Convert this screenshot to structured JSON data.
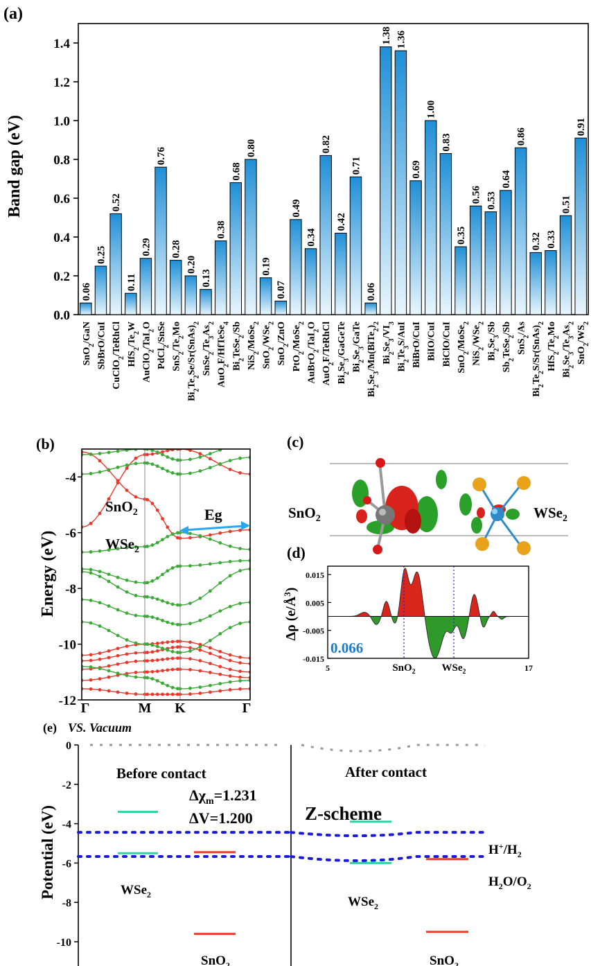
{
  "colors": {
    "bar_top": "#1f8fd6",
    "bar_bottom": "#e9f6fd",
    "red_band": "#e8382b",
    "green_band": "#3aa935",
    "blue_arrow": "#2aa6ee",
    "teal_level": "#2ed3a4",
    "red_level": "#f03a2a",
    "dotted_blue": "#1a1ad8",
    "value_blue": "#1f7cc4"
  },
  "panel_a": {
    "label": "(a)",
    "chart_data": {
      "type": "bar",
      "ylabel": "Band gap (eV)",
      "ylim": [
        0,
        1.5
      ],
      "yticks": [
        "0.0",
        "0.2",
        "0.4",
        "0.6",
        "0.8",
        "1.0",
        "1.2",
        "1.4"
      ],
      "categories": [
        "SnO2/GaN",
        "SbBrO/CuI",
        "CuClO2/TeRhCl",
        "HfS2/Te2W",
        "AuClO2/TaI2O",
        "PdCl2/SnSe",
        "SnS2/Te2Mo",
        "Bi2Te2Se/Sr(SnAs)2",
        "SnSe2/Te3As2",
        "AuO2F/HfTeSe4",
        "Bi2TeSe2/Sb",
        "NiS2/MoSe2",
        "SnO2/WSe2",
        "SnO2/ZnO",
        "PtO2/MoSe2",
        "AuBrO2/TaI2O",
        "AuO2F/TeRhCl",
        "Bi2Se3/GaGeTe",
        "Bi2Se3/GaTe",
        "Bi2Se3/Mn(BiTe2)2",
        "Bi2Se3/VI3",
        "Bi2Te3S/AuI",
        "BiBrO/CuI",
        "BiIO/CuI",
        "BiClO/CuI",
        "SnO2/MoSe2",
        "NiS2/WSe2",
        "Bi2Se3/Sb",
        "Sb2TeSe2/Sb",
        "SnS2/As",
        "Bi2Te2S/Sr(SnAs)2",
        "HfS2/Te2Mo",
        "Bi2Se3/Te3As2",
        "SnO2/WS2"
      ],
      "values": [
        0.06,
        0.25,
        0.52,
        0.11,
        0.29,
        0.76,
        0.28,
        0.2,
        0.13,
        0.38,
        0.68,
        0.8,
        0.19,
        0.07,
        0.49,
        0.34,
        0.82,
        0.42,
        0.71,
        0.06,
        1.38,
        1.36,
        0.69,
        1.0,
        0.83,
        0.35,
        0.56,
        0.53,
        0.64,
        0.86,
        0.32,
        0.33,
        0.51,
        0.91
      ],
      "value_labels": [
        "0.06",
        "0.25",
        "0.52",
        "0.11",
        "0.29",
        "0.76",
        "0.28",
        "0.20",
        "0.13",
        "0.38",
        "0.68",
        "0.80",
        "0.19",
        "0.07",
        "0.49",
        "0.34",
        "0.82",
        "0.42",
        "0.71",
        "0.06",
        "1.38",
        "1.36",
        "0.69",
        "1.00",
        "0.83",
        "0.35",
        "0.56",
        "0.53",
        "0.64",
        "0.86",
        "0.32",
        "0.33",
        "0.51",
        "0.91"
      ]
    }
  },
  "panel_b": {
    "label": "(b)",
    "chart_data": {
      "type": "line",
      "ylabel": "Energy (eV)",
      "ylim": [
        -12,
        -3
      ],
      "yticks": [
        "-4",
        "-6",
        "-8",
        "-10",
        "-12"
      ],
      "kpoints": [
        "Γ",
        "M",
        "K",
        "Γ"
      ],
      "annotations": [
        "SnO2",
        "WSe2",
        "Eg"
      ]
    }
  },
  "panel_c": {
    "label": "(c)",
    "left_label": "SnO2",
    "right_label": "WSe2"
  },
  "panel_d": {
    "label": "(d)",
    "chart_data": {
      "type": "area",
      "ylabel": "Δρ (e/Å³)",
      "xlim": [
        5,
        17
      ],
      "ylim": [
        -0.015,
        0.018
      ],
      "yticks": [
        "0.015",
        "0.005",
        "-0.005",
        "-0.015"
      ],
      "xticks": [
        "5",
        "17"
      ],
      "x_markers": [
        "SnO2",
        "WSe2"
      ],
      "annotation": "0.066"
    }
  },
  "panel_e": {
    "label": "(e)",
    "title": "VS. Vacuum",
    "ylabel": "Potential (eV)",
    "yticks": [
      "0",
      "-2",
      "-4",
      "-6",
      "-8",
      "-10"
    ],
    "before_title": "Before contact",
    "after_title": "After contact",
    "delta_chi": "Δχm=1.231",
    "delta_v": "ΔV=1.200",
    "scheme": "Z-scheme",
    "hplus_label": "H+/H2",
    "water_label": "H2O/O2",
    "wse2_label": "WSe2",
    "sno2_label": "SnO2",
    "chart_data": {
      "type": "diagram",
      "ylim": [
        -10.5,
        0
      ],
      "redox_levels": [
        {
          "name": "H+/H2",
          "value": -4.44
        },
        {
          "name": "H2O/O2",
          "value": -5.67
        }
      ],
      "before": {
        "WSe2": {
          "cbm": -3.4,
          "vbm": -5.5
        },
        "SnO2": {
          "cbm": -5.45,
          "vbm": -9.6
        }
      },
      "after": {
        "WSe2": {
          "cbm": -3.9,
          "vbm": -6.0
        },
        "SnO2": {
          "cbm": -5.8,
          "vbm": -9.5
        }
      }
    }
  }
}
